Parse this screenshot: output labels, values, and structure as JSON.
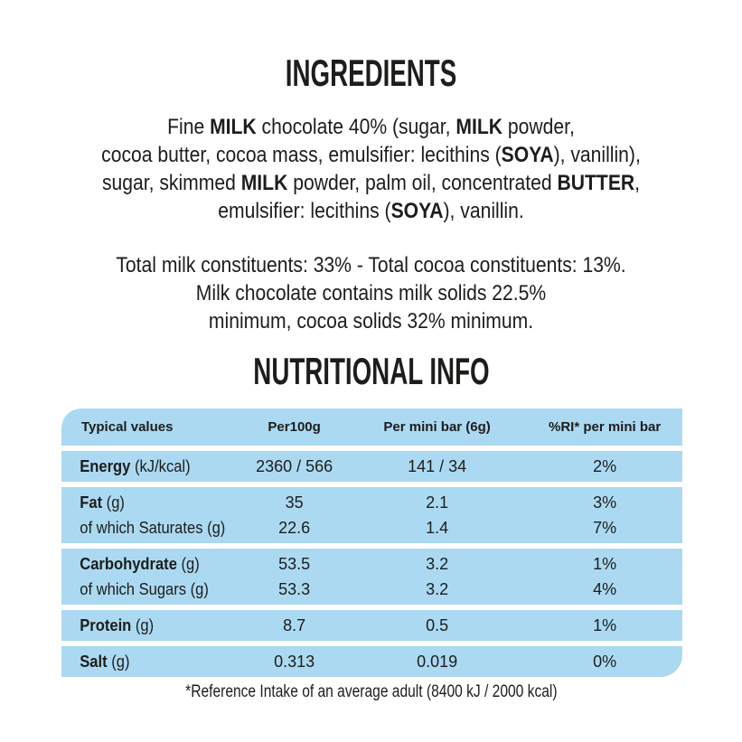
{
  "colors": {
    "table_bg": "#abd9f2",
    "text": "#1d1d1b",
    "page_bg": "#ffffff"
  },
  "ingredients": {
    "title": "INGREDIENTS",
    "lines": [
      [
        {
          "t": "Fine "
        },
        {
          "t": "MILK",
          "b": true
        },
        {
          "t": " chocolate 40% (sugar, "
        },
        {
          "t": "MILK",
          "b": true
        },
        {
          "t": " powder,"
        }
      ],
      [
        {
          "t": "cocoa butter, cocoa mass, emulsifier: lecithins ("
        },
        {
          "t": "SOYA",
          "b": true
        },
        {
          "t": "), vanillin),"
        }
      ],
      [
        {
          "t": "sugar, skimmed "
        },
        {
          "t": "MILK",
          "b": true
        },
        {
          "t": " powder, palm oil, concentrated "
        },
        {
          "t": "BUTTER",
          "b": true
        },
        {
          "t": ","
        }
      ],
      [
        {
          "t": "emulsifier: lecithins ("
        },
        {
          "t": "SOYA",
          "b": true
        },
        {
          "t": "), vanillin."
        }
      ]
    ]
  },
  "constituents": {
    "lines": [
      "Total milk constituents: 33% - Total cocoa constituents: 13%.",
      "Milk chocolate contains milk solids 22.5%",
      "minimum, cocoa solids 32% minimum."
    ]
  },
  "nutrition": {
    "title": "NUTRITIONAL INFO",
    "header": {
      "col1": "Typical values",
      "col2": "Per100g",
      "col3": "Per mini bar (6g)",
      "col4": "%RI* per mini bar"
    },
    "groups": [
      {
        "rows": [
          {
            "label": [
              {
                "t": "Energy",
                "b": true
              },
              {
                "t": " (kJ/kcal)"
              }
            ],
            "per100g": "2360 / 566",
            "per_bar": "141 / 34",
            "ri": "2%"
          }
        ]
      },
      {
        "rows": [
          {
            "label": [
              {
                "t": "Fat",
                "b": true
              },
              {
                "t": " (g)"
              }
            ],
            "per100g": "35",
            "per_bar": "2.1",
            "ri": "3%"
          },
          {
            "label": [
              {
                "t": "of which Saturates (g)"
              }
            ],
            "per100g": "22.6",
            "per_bar": "1.4",
            "ri": "7%"
          }
        ]
      },
      {
        "rows": [
          {
            "label": [
              {
                "t": "Carbohydrate",
                "b": true
              },
              {
                "t": " (g)"
              }
            ],
            "per100g": "53.5",
            "per_bar": "3.2",
            "ri": "1%"
          },
          {
            "label": [
              {
                "t": "of which Sugars (g)"
              }
            ],
            "per100g": "53.3",
            "per_bar": "3.2",
            "ri": "4%"
          }
        ]
      },
      {
        "rows": [
          {
            "label": [
              {
                "t": "Protein",
                "b": true
              },
              {
                "t": " (g)"
              }
            ],
            "per100g": "8.7",
            "per_bar": "0.5",
            "ri": "1%"
          }
        ]
      },
      {
        "rows": [
          {
            "label": [
              {
                "t": "Salt",
                "b": true
              },
              {
                "t": " (g)"
              }
            ],
            "per100g": "0.313",
            "per_bar": "0.019",
            "ri": "0%"
          }
        ]
      }
    ],
    "footnote": "*Reference Intake of an average adult (8400 kJ / 2000 kcal)"
  }
}
